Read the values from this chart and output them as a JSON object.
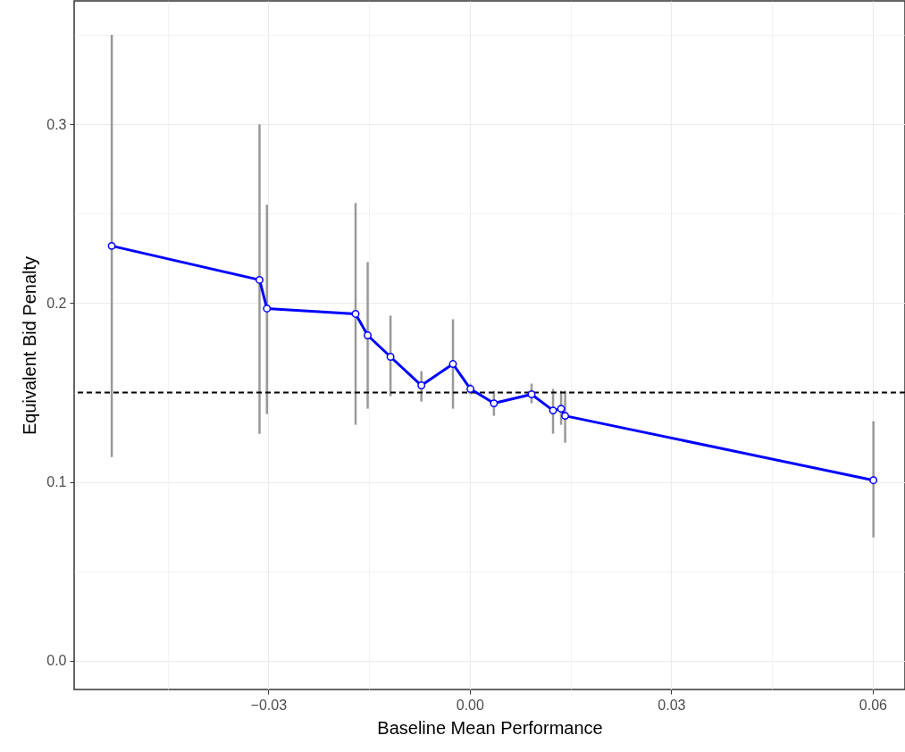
{
  "chart_data": {
    "type": "line",
    "xlabel": "Baseline Mean Performance",
    "ylabel": "Equivalent Bid Penalty",
    "x": [
      -0.0533,
      -0.0313,
      -0.0302,
      -0.017,
      -0.0152,
      -0.0118,
      -0.0072,
      -0.0025,
      0.0001,
      0.0036,
      0.0092,
      0.0124,
      0.0136,
      0.0142,
      0.0601
    ],
    "series": [
      {
        "color": "#0000ff",
        "values": [
          0.232,
          0.213,
          0.197,
          0.194,
          0.182,
          0.17,
          0.154,
          0.166,
          0.152,
          0.144,
          0.149,
          0.14,
          0.141,
          0.137,
          0.101
        ],
        "errors": [
          [
            0.114,
            0.35
          ],
          [
            0.127,
            0.3
          ],
          [
            0.138,
            0.255
          ],
          [
            0.132,
            0.256
          ],
          [
            0.141,
            0.223
          ],
          [
            0.148,
            0.193
          ],
          [
            0.145,
            0.162
          ],
          [
            0.141,
            0.191
          ],
          [
            0.149,
            0.155
          ],
          [
            0.137,
            0.151
          ],
          [
            0.144,
            0.155
          ],
          [
            0.127,
            0.152
          ],
          [
            0.132,
            0.151
          ],
          [
            0.122,
            0.151
          ],
          [
            0.069,
            0.134
          ]
        ]
      }
    ],
    "xlim": [
      -0.0589,
      0.0648
    ],
    "ylim": [
      -0.016,
      0.369
    ],
    "xticks": [
      {
        "value": -0.045,
        "label": null
      },
      {
        "value": -0.03,
        "label": "−0.03"
      },
      {
        "value": -0.015,
        "label": null
      },
      {
        "value": 0,
        "label": "0.00"
      },
      {
        "value": 0.015,
        "label": null
      },
      {
        "value": 0.03,
        "label": "0.03"
      },
      {
        "value": 0.045,
        "label": null
      },
      {
        "value": 0.06,
        "label": "0.06"
      }
    ],
    "yticks": [
      {
        "value": 0,
        "label": "0.0"
      },
      {
        "value": 0.05,
        "label": null
      },
      {
        "value": 0.1,
        "label": "0.1"
      },
      {
        "value": 0.15,
        "label": null
      },
      {
        "value": 0.2,
        "label": "0.2"
      },
      {
        "value": 0.25,
        "label": null
      },
      {
        "value": 0.3,
        "label": "0.3"
      },
      {
        "value": 0.35,
        "label": null
      }
    ],
    "grid": true,
    "marker": "circle",
    "line_style": "solid",
    "ref_lines": [
      {
        "axis": "y",
        "value": 0.15,
        "color": "#000000",
        "line_style": "dashed"
      }
    ]
  }
}
